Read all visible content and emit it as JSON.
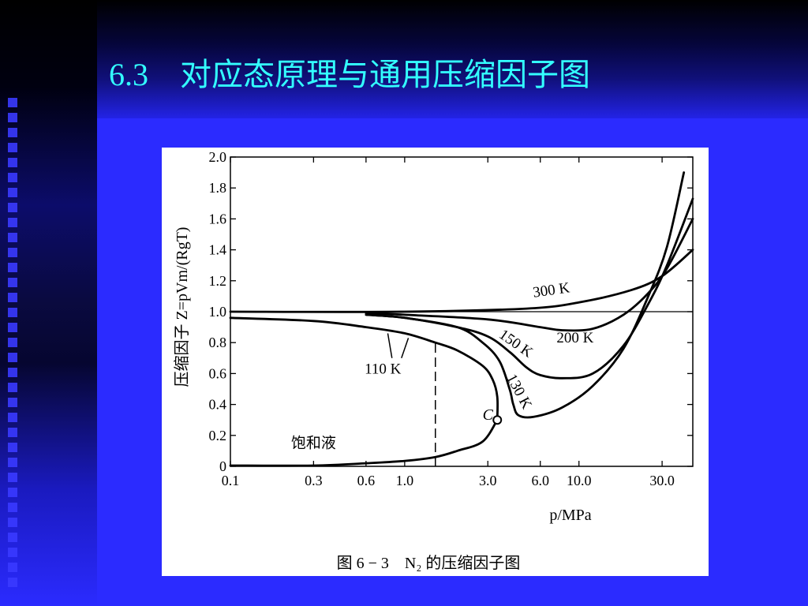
{
  "slide": {
    "title": "6.3　对应态原理与通用压缩因子图"
  },
  "colors": {
    "background": "#2b2bff",
    "title": "#33ffff",
    "figure_background": "#ffffff"
  },
  "chart_data": {
    "type": "line",
    "title": "",
    "caption": "图 6 − 3　N₂ 的压缩因子图",
    "xlabel": "p/MPa",
    "ylabel": "压缩因子 Z=pVm/(RgT)",
    "x_scale": "log",
    "xlim": [
      0.1,
      45
    ],
    "ylim": [
      0,
      2.0
    ],
    "x_ticks": [
      0.1,
      0.3,
      0.6,
      1.0,
      3.0,
      6.0,
      10.0,
      30.0
    ],
    "x_tick_labels": [
      "0.1",
      "0.3",
      "0.6",
      "1.0",
      "3.0",
      "6.0",
      "10.0",
      "30.0"
    ],
    "y_ticks": [
      0,
      0.2,
      0.4,
      0.6,
      0.8,
      1.0,
      1.2,
      1.4,
      1.6,
      1.8,
      2.0
    ],
    "y_tick_labels": [
      "0",
      "0.2",
      "0.4",
      "0.6",
      "0.8",
      "1.0",
      "1.2",
      "1.4",
      "1.6",
      "1.8",
      "2.0"
    ],
    "grid": false,
    "reference_line": {
      "y": 1.0
    },
    "series": [
      {
        "name": "300 K",
        "points": [
          [
            0.1,
            1.0
          ],
          [
            1,
            1.0
          ],
          [
            5,
            1.02
          ],
          [
            10,
            1.06
          ],
          [
            20,
            1.14
          ],
          [
            30,
            1.23
          ],
          [
            45,
            1.4
          ]
        ]
      },
      {
        "name": "200 K",
        "points": [
          [
            0.6,
            0.99
          ],
          [
            1,
            0.98
          ],
          [
            3,
            0.95
          ],
          [
            6,
            0.9
          ],
          [
            8,
            0.88
          ],
          [
            12,
            0.89
          ],
          [
            18,
            0.98
          ],
          [
            25,
            1.12
          ],
          [
            32,
            1.28
          ],
          [
            45,
            1.6
          ]
        ]
      },
      {
        "name": "150 K",
        "points": [
          [
            0.6,
            0.98
          ],
          [
            1,
            0.96
          ],
          [
            2,
            0.9
          ],
          [
            3,
            0.84
          ],
          [
            4,
            0.74
          ],
          [
            5,
            0.64
          ],
          [
            6,
            0.59
          ],
          [
            8,
            0.57
          ],
          [
            12,
            0.6
          ],
          [
            18,
            0.78
          ],
          [
            25,
            1.05
          ],
          [
            32,
            1.3
          ],
          [
            45,
            1.73
          ]
        ]
      },
      {
        "name": "130 K",
        "points": [
          [
            0.6,
            0.98
          ],
          [
            1,
            0.96
          ],
          [
            2,
            0.9
          ],
          [
            2.8,
            0.8
          ],
          [
            3.5,
            0.68
          ],
          [
            4,
            0.5
          ],
          [
            4.2,
            0.4
          ],
          [
            4.5,
            0.33
          ],
          [
            5.5,
            0.32
          ],
          [
            8,
            0.38
          ],
          [
            12,
            0.52
          ],
          [
            18,
            0.76
          ],
          [
            25,
            1.1
          ],
          [
            32,
            1.42
          ],
          [
            40,
            1.9
          ]
        ]
      },
      {
        "name": "110 K",
        "points": [
          [
            0.1,
            0.96
          ],
          [
            0.3,
            0.94
          ],
          [
            0.6,
            0.9
          ],
          [
            1,
            0.86
          ],
          [
            1.5,
            0.8
          ],
          [
            2,
            0.75
          ],
          [
            2.8,
            0.65
          ],
          [
            3.2,
            0.56
          ],
          [
            3.4,
            0.45
          ],
          [
            3.4,
            0.3
          ]
        ]
      },
      {
        "name": "饱和液",
        "points": [
          [
            0.1,
            0.005
          ],
          [
            0.3,
            0.005
          ],
          [
            0.6,
            0.02
          ],
          [
            1,
            0.035
          ],
          [
            1.5,
            0.06
          ],
          [
            2,
            0.1
          ],
          [
            2.8,
            0.16
          ],
          [
            3.4,
            0.3
          ]
        ]
      }
    ],
    "annotations": [
      {
        "text": "300 K",
        "x": 7,
        "y": 1.11
      },
      {
        "text": "200 K",
        "x": 9.5,
        "y": 0.8
      },
      {
        "text": "150 K",
        "x": 4.2,
        "y": 0.77
      },
      {
        "text": "130 K",
        "x": 4.3,
        "y": 0.47
      },
      {
        "text": "110 K",
        "x": 0.75,
        "y": 0.6
      },
      {
        "text": "C",
        "x": 3.0,
        "y": 0.3
      },
      {
        "text": "饱和液",
        "x": 0.3,
        "y": 0.12
      }
    ],
    "critical_point": {
      "label": "C",
      "x": 3.4,
      "y": 0.3
    },
    "dashed_line": {
      "x": 1.5,
      "y_from": 0.0,
      "y_to": 0.8
    }
  }
}
